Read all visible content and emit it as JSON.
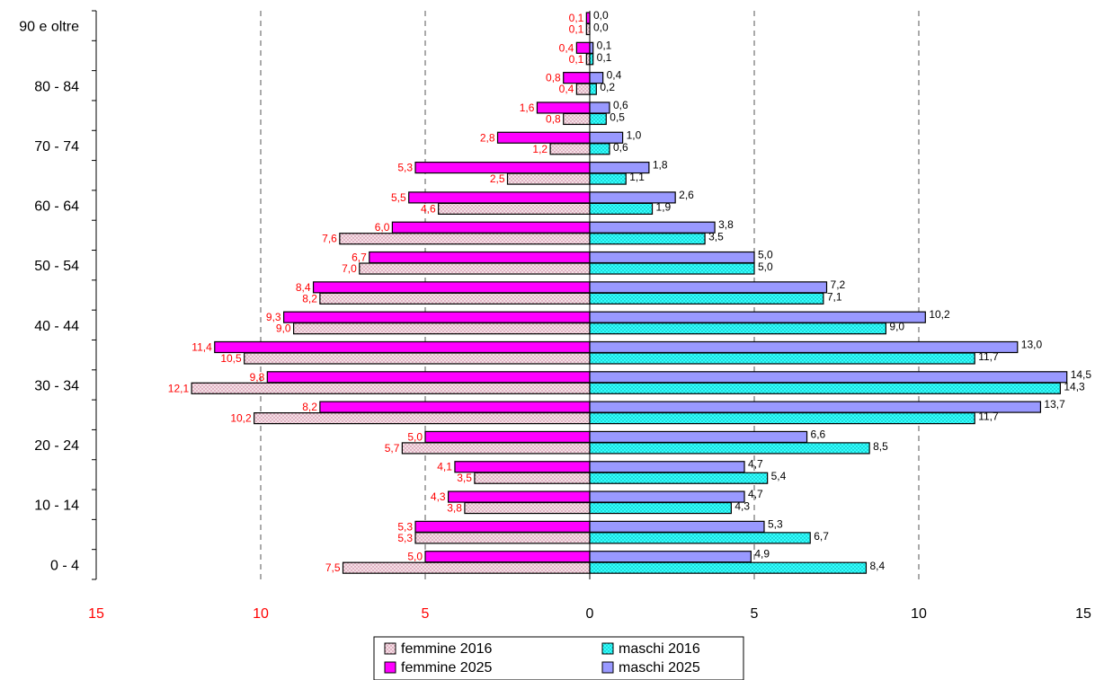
{
  "chart_data": {
    "type": "bar",
    "orientation": "horizontal",
    "layout": "population-pyramid",
    "categories": [
      "0 - 4",
      "5 - 9",
      "10 - 14",
      "15 - 19",
      "20 - 24",
      "25 - 29",
      "30 - 34",
      "35 - 39",
      "40 - 44",
      "45 - 49",
      "50 - 54",
      "55 - 59",
      "60 - 64",
      "65 - 69",
      "70 - 74",
      "75 - 79",
      "80 - 84",
      "85 - 89",
      "90 e oltre"
    ],
    "y_tick_labels": [
      "0 - 4",
      "10 - 14",
      "20 - 24",
      "30 - 34",
      "40 - 44",
      "50 - 54",
      "60 - 64",
      "70 - 74",
      "80 - 84",
      "90 e oltre"
    ],
    "series": [
      {
        "name": "femmine 2016",
        "side": "left",
        "color": "#f5e0e6",
        "pattern": "dots",
        "values": [
          7.5,
          5.3,
          3.8,
          3.5,
          5.7,
          10.2,
          12.1,
          10.5,
          9.0,
          8.2,
          7.0,
          7.6,
          4.6,
          2.5,
          1.2,
          0.8,
          0.4,
          0.1,
          0.1
        ],
        "labels": [
          "7,5",
          "5,3",
          "3,8",
          "3,5",
          "5,7",
          "10,2",
          "12,1",
          "10,5",
          "9,0",
          "8,2",
          "7,0",
          "7,6",
          "4,6",
          "2,5",
          "1,2",
          "0,8",
          "0,4",
          "0,1",
          "0,1"
        ]
      },
      {
        "name": "femmine 2025",
        "side": "left",
        "color": "#ff00ff",
        "values": [
          5.0,
          5.3,
          4.3,
          4.1,
          5.0,
          8.2,
          9.8,
          11.4,
          9.3,
          8.4,
          6.7,
          6.0,
          5.5,
          5.3,
          2.8,
          1.6,
          0.8,
          0.4,
          0.1
        ],
        "labels": [
          "5,0",
          "5,3",
          "4,3",
          "4,1",
          "5,0",
          "8,2",
          "9,8",
          "11,4",
          "9,3",
          "8,4",
          "6,7",
          "6,0",
          "5,5",
          "5,3",
          "2,8",
          "1,6",
          "0,8",
          "0,4",
          "0,1"
        ]
      },
      {
        "name": "maschi 2016",
        "side": "right",
        "color": "#33ffff",
        "pattern": "dots",
        "values": [
          8.4,
          6.7,
          4.3,
          5.4,
          8.5,
          11.7,
          14.3,
          11.7,
          9.0,
          7.1,
          5.0,
          3.5,
          1.9,
          1.1,
          0.6,
          0.5,
          0.2,
          0.1,
          0.0
        ],
        "labels": [
          "8,4",
          "6,7",
          "4,3",
          "5,4",
          "8,5",
          "11,7",
          "14,3",
          "11,7",
          "9,0",
          "7,1",
          "5,0",
          "3,5",
          "1,9",
          "1,1",
          "0,6",
          "0,5",
          "0,2",
          "0,1",
          "0,0"
        ]
      },
      {
        "name": "maschi 2025",
        "side": "right",
        "color": "#9999ff",
        "values": [
          4.9,
          5.3,
          4.7,
          4.7,
          6.6,
          13.7,
          14.5,
          13.0,
          10.2,
          7.2,
          5.0,
          3.8,
          2.6,
          1.8,
          1.0,
          0.6,
          0.4,
          0.1,
          0.0
        ],
        "labels": [
          "4,9",
          "5,3",
          "4,7",
          "4,7",
          "6,6",
          "13,7",
          "14,5",
          "13,0",
          "10,2",
          "7,2",
          "5,0",
          "3,8",
          "2,6",
          "1,8",
          "1,0",
          "0,6",
          "0,4",
          "0,1",
          "0,0"
        ]
      }
    ],
    "x_ticks_left": [
      {
        "value": 15,
        "label": "15"
      },
      {
        "value": 10,
        "label": "10"
      },
      {
        "value": 5,
        "label": "5"
      }
    ],
    "x_ticks_right": [
      {
        "value": 0,
        "label": "0"
      },
      {
        "value": 5,
        "label": "5"
      },
      {
        "value": 10,
        "label": "10"
      },
      {
        "value": 15,
        "label": "15"
      }
    ],
    "xlim": [
      -15,
      15
    ],
    "left_tick_color": "#ff0000",
    "right_tick_color": "#000000",
    "grid": "vertical-dashed",
    "legend": {
      "placement": "bottom-center",
      "items": [
        {
          "label": "femmine 2016",
          "series": 0
        },
        {
          "label": "maschi 2016",
          "series": 2
        },
        {
          "label": "femmine 2025",
          "series": 1
        },
        {
          "label": "maschi 2025",
          "series": 3
        }
      ]
    },
    "title": "",
    "xlabel": "",
    "ylabel": ""
  }
}
